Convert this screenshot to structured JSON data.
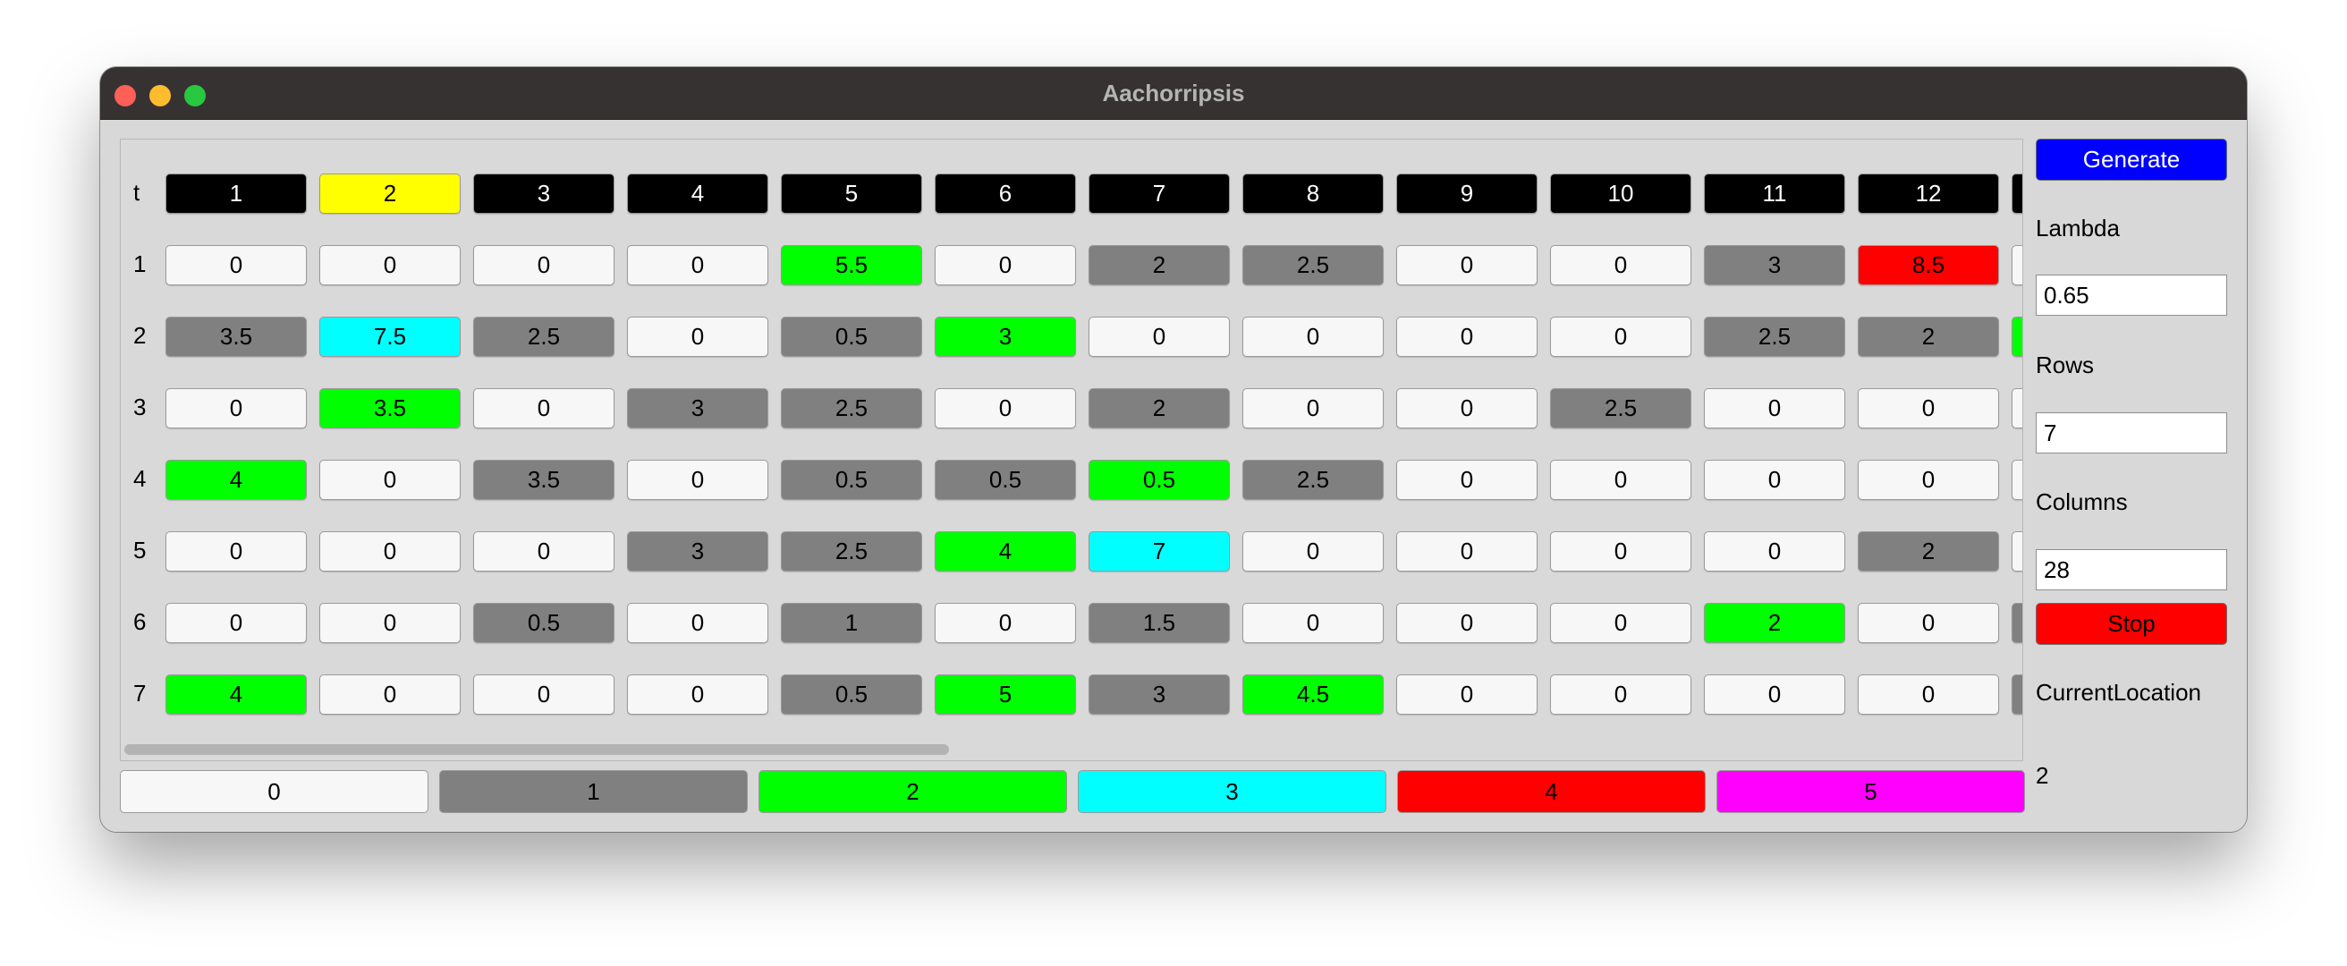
{
  "window": {
    "title": "Aachorripsis"
  },
  "grid": {
    "header_label": "t",
    "headers": [
      "1",
      "2",
      "3",
      "4",
      "5",
      "6",
      "7",
      "8",
      "9",
      "10",
      "11",
      "12",
      ""
    ],
    "current_column_index": 1,
    "rows": [
      {
        "label": "1",
        "values": [
          "0",
          "0",
          "0",
          "0",
          "5.5",
          "0",
          "2",
          "2.5",
          "0",
          "0",
          "3",
          "8.5",
          ""
        ],
        "states": [
          0,
          0,
          0,
          0,
          2,
          0,
          1,
          1,
          0,
          0,
          1,
          4,
          0
        ]
      },
      {
        "label": "2",
        "values": [
          "3.5",
          "7.5",
          "2.5",
          "0",
          "0.5",
          "3",
          "0",
          "0",
          "0",
          "0",
          "2.5",
          "2",
          ""
        ],
        "states": [
          1,
          3,
          1,
          0,
          1,
          2,
          0,
          0,
          0,
          0,
          1,
          1,
          2
        ]
      },
      {
        "label": "3",
        "values": [
          "0",
          "3.5",
          "0",
          "3",
          "2.5",
          "0",
          "2",
          "0",
          "0",
          "2.5",
          "0",
          "0",
          ""
        ],
        "states": [
          0,
          2,
          0,
          1,
          1,
          0,
          1,
          0,
          0,
          1,
          0,
          0,
          0
        ]
      },
      {
        "label": "4",
        "values": [
          "4",
          "0",
          "3.5",
          "0",
          "0.5",
          "0.5",
          "0.5",
          "2.5",
          "0",
          "0",
          "0",
          "0",
          ""
        ],
        "states": [
          2,
          0,
          1,
          0,
          1,
          1,
          2,
          1,
          0,
          0,
          0,
          0,
          0
        ]
      },
      {
        "label": "5",
        "values": [
          "0",
          "0",
          "0",
          "3",
          "2.5",
          "4",
          "7",
          "0",
          "0",
          "0",
          "0",
          "2",
          ""
        ],
        "states": [
          0,
          0,
          0,
          1,
          1,
          2,
          3,
          0,
          0,
          0,
          0,
          1,
          0
        ]
      },
      {
        "label": "6",
        "values": [
          "0",
          "0",
          "0.5",
          "0",
          "1",
          "0",
          "1.5",
          "0",
          "0",
          "0",
          "2",
          "0",
          ""
        ],
        "states": [
          0,
          0,
          1,
          0,
          1,
          0,
          1,
          0,
          0,
          0,
          2,
          0,
          1
        ]
      },
      {
        "label": "7",
        "values": [
          "4",
          "0",
          "0",
          "0",
          "0.5",
          "5",
          "3",
          "4.5",
          "0",
          "0",
          "0",
          "0",
          ""
        ],
        "states": [
          2,
          0,
          0,
          0,
          1,
          2,
          1,
          2,
          0,
          0,
          0,
          0,
          1
        ]
      }
    ]
  },
  "colors": {
    "state": [
      "#f7f7f7",
      "#808080",
      "#00ff00",
      "#00ffff",
      "#ff0000",
      "#ff00ff"
    ],
    "header_bg": "#000000",
    "header_current": "#ffff00",
    "generate": "#0000ff",
    "stop": "#ff0000"
  },
  "legend": [
    "0",
    "1",
    "2",
    "3",
    "4",
    "5"
  ],
  "sidebar": {
    "generate_label": "Generate",
    "lambda_label": "Lambda",
    "lambda_value": "0.65",
    "rows_label": "Rows",
    "rows_value": "7",
    "columns_label": "Columns",
    "columns_value": "28",
    "stop_label": "Stop",
    "current_location_label": "CurrentLocation",
    "current_location_value": "2"
  }
}
